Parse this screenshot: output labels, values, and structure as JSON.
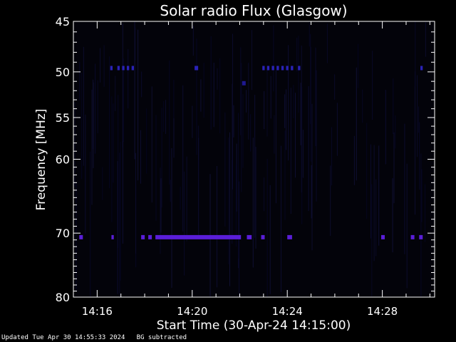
{
  "chart_data": {
    "type": "heatmap",
    "title": "Solar radio Flux (Glasgow)",
    "xlabel": "Start Time (30-Apr-24 14:15:00)",
    "ylabel": "Frequency [MHz]",
    "x_unit": "minutes after 14:15:00",
    "xlim": [
      0,
      15.2
    ],
    "ylim": [
      45,
      80
    ],
    "y_scale": "log",
    "y_inverted": true,
    "x_ticks": [
      {
        "value": 1,
        "label": "14:16"
      },
      {
        "value": 5,
        "label": "14:20"
      },
      {
        "value": 9,
        "label": "14:24"
      },
      {
        "value": 13,
        "label": "14:28"
      }
    ],
    "y_ticks": [
      {
        "value": 45,
        "label": "45"
      },
      {
        "value": 50,
        "label": "50"
      },
      {
        "value": 55,
        "label": "55"
      },
      {
        "value": 60,
        "label": "60"
      },
      {
        "value": 70,
        "label": "70"
      },
      {
        "value": 80,
        "label": "80"
      }
    ],
    "bands": [
      {
        "name": "",
        "frequency": 49.6,
        "color": "#2a22b8",
        "segments": [
          [
            1.55,
            1.65
          ],
          [
            1.85,
            1.95
          ],
          [
            2.05,
            2.15
          ],
          [
            2.25,
            2.35
          ],
          [
            2.45,
            2.55
          ],
          [
            5.1,
            5.25
          ],
          [
            7.95,
            8.05
          ],
          [
            8.15,
            8.25
          ],
          [
            8.35,
            8.45
          ],
          [
            8.55,
            8.65
          ],
          [
            8.75,
            8.85
          ],
          [
            8.95,
            9.05
          ],
          [
            9.15,
            9.25
          ],
          [
            9.45,
            9.55
          ],
          [
            14.6,
            14.7
          ]
        ]
      },
      {
        "name": "",
        "frequency": 51.2,
        "color": "#1e1890",
        "segments": [
          [
            7.1,
            7.25
          ]
        ]
      },
      {
        "name": "",
        "frequency": 70.6,
        "color": "#5a1ed8",
        "segments": [
          [
            0.25,
            0.4
          ],
          [
            1.6,
            1.7
          ],
          [
            2.85,
            3.0
          ],
          [
            3.15,
            3.3
          ],
          [
            3.45,
            7.05
          ],
          [
            7.3,
            7.5
          ],
          [
            7.9,
            8.05
          ],
          [
            9.0,
            9.2
          ],
          [
            12.95,
            13.1
          ],
          [
            14.2,
            14.35
          ],
          [
            14.55,
            14.7
          ]
        ]
      }
    ],
    "background_color": "#000000"
  },
  "footer": {
    "updated": "Updated Tue Apr 30 14:55:33 2024",
    "bg_note": "BG subtracted"
  }
}
